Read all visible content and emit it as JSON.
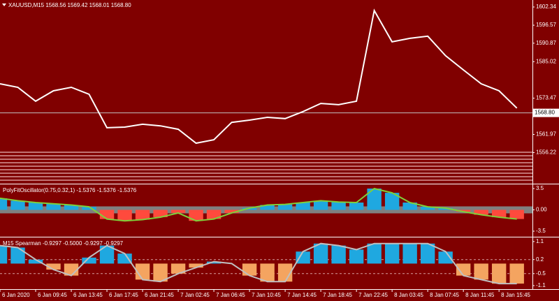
{
  "chart_data": [
    {
      "type": "line",
      "title": "XAUUSD,M15  1568.56 1569.42 1568.01 1568.80",
      "color": "#ffffff",
      "x": [
        0,
        8,
        16,
        24,
        32,
        40,
        48,
        56,
        64,
        72,
        80,
        88,
        96,
        104,
        112,
        120,
        128,
        136,
        144,
        152,
        160,
        168,
        176,
        184,
        192,
        200,
        208,
        216,
        224,
        232
      ],
      "values": [
        1578.0,
        1576.9,
        1572.5,
        1575.8,
        1576.9,
        1574.7,
        1564.1,
        1564.3,
        1565.2,
        1564.7,
        1563.6,
        1559.2,
        1560.3,
        1565.8,
        1566.5,
        1567.4,
        1567.0,
        1569.2,
        1571.8,
        1571.4,
        1572.5,
        1601.2,
        1591.3,
        1592.4,
        1593.1,
        1586.9,
        1582.4,
        1578.0,
        1575.8,
        1570.3
      ],
      "xlim": [
        0,
        239
      ],
      "xticks": [
        {
          "value": 0,
          "label": "6 Jan 2020"
        },
        {
          "value": 16,
          "label": "6 Jan 09:45"
        },
        {
          "value": 32,
          "label": "6 Jan 13:45"
        },
        {
          "value": 48,
          "label": "6 Jan 17:45"
        },
        {
          "value": 64,
          "label": "6 Jan 21:45"
        },
        {
          "value": 80,
          "label": "7 Jan 02:45"
        },
        {
          "value": 96,
          "label": "7 Jan 06:45"
        },
        {
          "value": 112,
          "label": "7 Jan 10:45"
        },
        {
          "value": 128,
          "label": "7 Jan 14:45"
        },
        {
          "value": 144,
          "label": "7 Jan 18:45"
        },
        {
          "value": 160,
          "label": "7 Jan 22:45"
        },
        {
          "value": 176,
          "label": "8 Jan 03:45"
        },
        {
          "value": 192,
          "label": "8 Jan 07:45"
        },
        {
          "value": 208,
          "label": "8 Jan 11:45"
        },
        {
          "value": 224,
          "label": "8 Jan 15:45"
        }
      ],
      "ylim": [
        1546.6,
        1604.55
      ],
      "yticks": [
        1602.34,
        1596.57,
        1590.87,
        1585.02,
        1573.47,
        1561.97,
        1556.22
      ],
      "price_line": {
        "value": 1568.8,
        "label": "1568.80"
      }
    },
    {
      "type": "bar",
      "title": "PolyFitOscillator(0.75,0.32,1) -1.5376 -1.5376 -1.5376",
      "up_color": "#1fa8e0",
      "down_color": "#ff4a3d",
      "line_color": "#7fd03a",
      "x": [
        0,
        8,
        16,
        24,
        32,
        40,
        48,
        56,
        64,
        72,
        80,
        88,
        96,
        104,
        112,
        120,
        128,
        136,
        144,
        152,
        160,
        168,
        176,
        184,
        192,
        200,
        208,
        216,
        224,
        232
      ],
      "values": [
        1.9,
        1.5,
        1.2,
        1.0,
        0.8,
        0.5,
        -1.5,
        -1.8,
        -1.6,
        -1.2,
        -0.5,
        -1.8,
        -1.5,
        -0.5,
        0.3,
        0.8,
        0.9,
        1.2,
        1.5,
        1.3,
        1.2,
        3.5,
        2.8,
        1.2,
        0.5,
        0.3,
        -0.3,
        -0.8,
        -1.2,
        -1.5
      ],
      "xlim": [
        0,
        239
      ],
      "ylim": [
        -4.3,
        4.07
      ],
      "yticks": [
        3.5,
        {
          "value": 0,
          "label": "0.00"
        },
        -3.5
      ]
    },
    {
      "type": "bar",
      "title": "M15 Spearman  -0.9297 -0.5000 -0.9297 -0.9297",
      "up_color": "#1fa8e0",
      "down_color": "#f4a460",
      "line_color": "#c0c0c0",
      "x": [
        0,
        8,
        16,
        24,
        32,
        40,
        48,
        56,
        64,
        72,
        80,
        88,
        96,
        104,
        112,
        120,
        128,
        136,
        144,
        152,
        160,
        168,
        176,
        184,
        192,
        200,
        208,
        216,
        224,
        232
      ],
      "values": [
        0.9,
        0.8,
        0.2,
        -0.3,
        -0.6,
        0.3,
        0.9,
        0.5,
        -0.8,
        -0.9,
        -0.5,
        -0.2,
        0.1,
        0.0,
        -0.6,
        -0.9,
        -0.9,
        0.6,
        1.0,
        0.9,
        0.7,
        1.0,
        1.0,
        1.0,
        1.0,
        0.6,
        -0.6,
        -0.8,
        -1.0,
        -1.0
      ],
      "xlim": [
        0,
        239
      ],
      "ylim": [
        -1.24,
        1.27
      ],
      "yticks": [
        1.1,
        0.2,
        -0.5,
        -1.1
      ]
    }
  ]
}
